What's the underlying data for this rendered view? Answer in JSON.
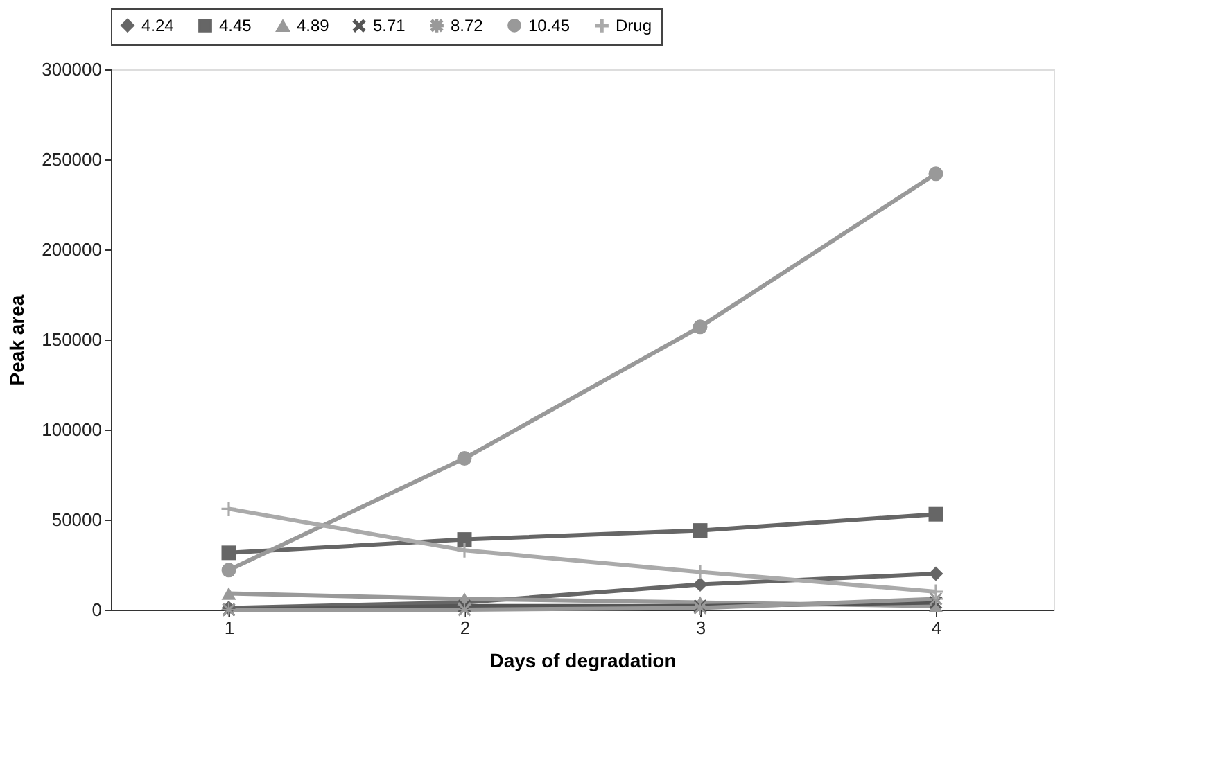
{
  "chart_data": {
    "type": "line",
    "xlabel": "Days of degradation",
    "ylabel": "Peak area",
    "categories": [
      "1",
      "2",
      "3",
      "4"
    ],
    "ylim": [
      0,
      300000
    ],
    "yticks": [
      0,
      50000,
      100000,
      150000,
      200000,
      250000,
      300000
    ],
    "grid": false,
    "legend": "top",
    "series": [
      {
        "name": "4.24",
        "color": "#666666",
        "marker": "diamond",
        "values": [
          1000,
          4000,
          14000,
          20000
        ]
      },
      {
        "name": "4.45",
        "color": "#666666",
        "marker": "square",
        "values": [
          31600,
          39000,
          44000,
          53000
        ]
      },
      {
        "name": "4.89",
        "color": "#999999",
        "marker": "triangle",
        "values": [
          9000,
          6000,
          4000,
          2000
        ]
      },
      {
        "name": "5.71",
        "color": "#555555",
        "marker": "cross",
        "values": [
          0,
          2000,
          2000,
          4000
        ]
      },
      {
        "name": "8.72",
        "color": "#999999",
        "marker": "star",
        "values": [
          0,
          0,
          1000,
          6000
        ]
      },
      {
        "name": "10.45",
        "color": "#999999",
        "marker": "circle",
        "values": [
          22000,
          84000,
          157000,
          242000
        ]
      },
      {
        "name": "Drug",
        "color": "#aaaaaa",
        "marker": "plus",
        "values": [
          56000,
          33000,
          21000,
          10000
        ]
      }
    ]
  }
}
